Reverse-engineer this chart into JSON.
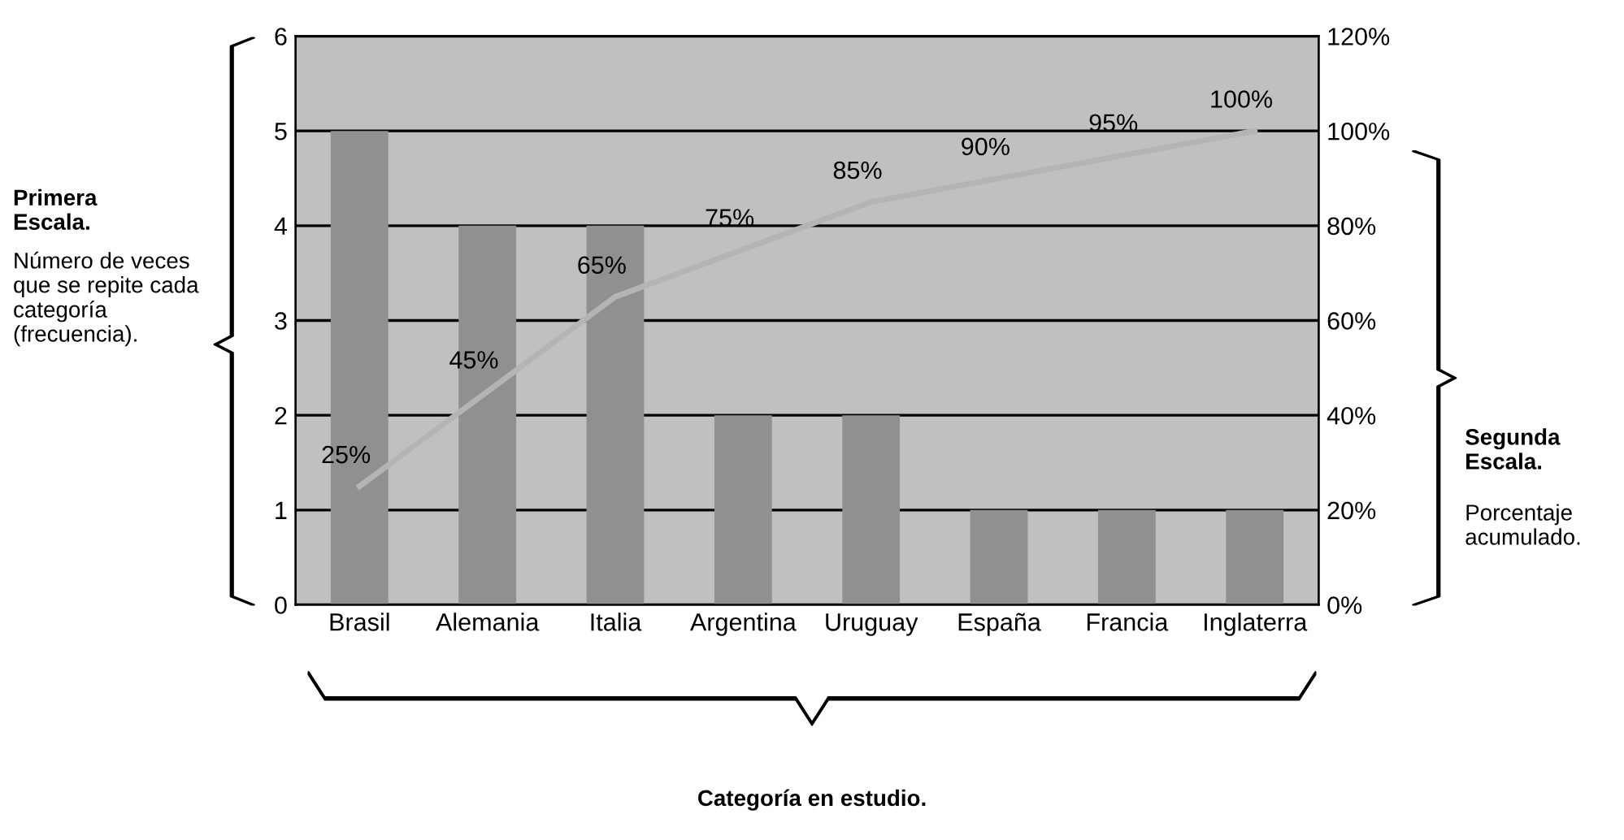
{
  "chart_data": {
    "type": "bar",
    "categories": [
      "Brasil",
      "Alemania",
      "Italia",
      "Argentina",
      "Uruguay",
      "España",
      "Francia",
      "Inglaterra"
    ],
    "series": [
      {
        "color": "#909090",
        "values": [
          5,
          4,
          4,
          2,
          2,
          1,
          1,
          1
        ]
      },
      {
        "type": "line",
        "axis": "y2",
        "color": "#b4b4b4",
        "values": [
          25,
          45,
          65,
          75,
          85,
          90,
          95,
          100
        ],
        "value_labels": [
          "25%",
          "45%",
          "65%",
          "75%",
          "85%",
          "90%",
          "95%",
          "100%"
        ]
      }
    ],
    "ylim": [
      0,
      6
    ],
    "yticks": [
      0,
      1,
      2,
      3,
      4,
      5,
      6
    ],
    "y2lim": [
      0,
      120
    ],
    "y2ticks": [
      {
        "value": 0,
        "label": "0%"
      },
      {
        "value": 20,
        "label": "20%"
      },
      {
        "value": 40,
        "label": "40%"
      },
      {
        "value": 60,
        "label": "60%"
      },
      {
        "value": 80,
        "label": "80%"
      },
      {
        "value": 100,
        "label": "100%"
      },
      {
        "value": 120,
        "label": "120%"
      }
    ],
    "grid": "y",
    "marker": "none",
    "line_style": "solid",
    "annotations": [
      "Primera Escala.",
      "Número de veces que se repite cada categoría (frecuencia).",
      "Segunda Escala.",
      "Porcentaje acumulado.",
      "Categoría en estudio."
    ]
  }
}
